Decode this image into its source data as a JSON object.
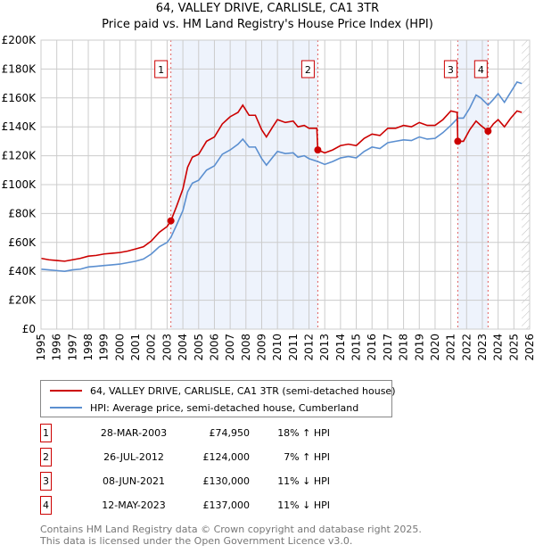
{
  "chart_data": {
    "type": "line",
    "title": "64, VALLEY DRIVE, CARLISLE, CA1 3TR",
    "subtitle": "Price paid vs. HM Land Registry's House Price Index (HPI)",
    "xlim": [
      1995,
      2026
    ],
    "ylim": [
      0,
      200000
    ],
    "x_ticks": [
      "1995",
      "1996",
      "1997",
      "1998",
      "1999",
      "2000",
      "2001",
      "2002",
      "2003",
      "2004",
      "2005",
      "2006",
      "2007",
      "2008",
      "2009",
      "2010",
      "2011",
      "2012",
      "2013",
      "2014",
      "2015",
      "2016",
      "2017",
      "2018",
      "2019",
      "2020",
      "2021",
      "2022",
      "2023",
      "2024",
      "2025",
      "2026"
    ],
    "y_ticks": [
      {
        "v": 0,
        "l": "£0"
      },
      {
        "v": 20000,
        "l": "£20K"
      },
      {
        "v": 40000,
        "l": "£40K"
      },
      {
        "v": 60000,
        "l": "£60K"
      },
      {
        "v": 80000,
        "l": "£80K"
      },
      {
        "v": 100000,
        "l": "£100K"
      },
      {
        "v": 120000,
        "l": "£120K"
      },
      {
        "v": 140000,
        "l": "£140K"
      },
      {
        "v": 160000,
        "l": "£160K"
      },
      {
        "v": 180000,
        "l": "£180K"
      },
      {
        "v": 200000,
        "l": "£200K"
      }
    ],
    "grid": true,
    "series": [
      {
        "name": "64, VALLEY DRIVE, CARLISLE, CA1 3TR (semi-detached house)",
        "color": "#cc0000",
        "points": [
          [
            1995,
            49000
          ],
          [
            1995.5,
            48000
          ],
          [
            1996,
            47500
          ],
          [
            1996.5,
            47000
          ],
          [
            1997,
            48000
          ],
          [
            1997.5,
            49000
          ],
          [
            1998,
            50500
          ],
          [
            1998.5,
            51000
          ],
          [
            1999,
            52000
          ],
          [
            1999.5,
            52500
          ],
          [
            2000,
            53000
          ],
          [
            2000.5,
            54000
          ],
          [
            2001,
            55500
          ],
          [
            2001.5,
            57000
          ],
          [
            2002,
            61000
          ],
          [
            2002.5,
            67000
          ],
          [
            2003,
            71000
          ],
          [
            2003.24,
            74950
          ],
          [
            2003.6,
            85000
          ],
          [
            2004,
            97000
          ],
          [
            2004.3,
            112000
          ],
          [
            2004.6,
            119000
          ],
          [
            2005,
            121000
          ],
          [
            2005.5,
            130000
          ],
          [
            2006,
            133000
          ],
          [
            2006.5,
            142000
          ],
          [
            2007,
            147000
          ],
          [
            2007.5,
            150000
          ],
          [
            2007.8,
            155000
          ],
          [
            2008.2,
            148000
          ],
          [
            2008.6,
            148000
          ],
          [
            2009,
            138000
          ],
          [
            2009.3,
            133000
          ],
          [
            2009.7,
            140000
          ],
          [
            2010,
            145000
          ],
          [
            2010.5,
            143000
          ],
          [
            2011,
            144000
          ],
          [
            2011.3,
            140000
          ],
          [
            2011.7,
            141000
          ],
          [
            2012,
            139000
          ],
          [
            2012.5,
            139000
          ],
          [
            2012.56,
            124000
          ],
          [
            2013,
            122000
          ],
          [
            2013.5,
            124000
          ],
          [
            2014,
            127000
          ],
          [
            2014.5,
            128000
          ],
          [
            2015,
            127000
          ],
          [
            2015.5,
            132000
          ],
          [
            2016,
            135000
          ],
          [
            2016.5,
            134000
          ],
          [
            2017,
            139000
          ],
          [
            2017.5,
            139000
          ],
          [
            2018,
            141000
          ],
          [
            2018.5,
            140000
          ],
          [
            2019,
            143000
          ],
          [
            2019.5,
            141000
          ],
          [
            2020,
            141000
          ],
          [
            2020.5,
            145000
          ],
          [
            2021,
            151000
          ],
          [
            2021.4,
            150000
          ],
          [
            2021.44,
            130000
          ],
          [
            2021.8,
            130000
          ],
          [
            2022.2,
            138000
          ],
          [
            2022.6,
            144000
          ],
          [
            2022.9,
            141000
          ],
          [
            2023.36,
            137000
          ],
          [
            2023.7,
            142000
          ],
          [
            2024,
            145000
          ],
          [
            2024.4,
            140000
          ],
          [
            2024.8,
            146000
          ],
          [
            2025.2,
            151000
          ],
          [
            2025.5,
            150000
          ]
        ]
      },
      {
        "name": "HPI: Average price, semi-detached house, Cumberland",
        "color": "#5b8fd0",
        "points": [
          [
            1995,
            41500
          ],
          [
            1995.5,
            41000
          ],
          [
            1996,
            40500
          ],
          [
            1996.5,
            40000
          ],
          [
            1997,
            41000
          ],
          [
            1997.5,
            41500
          ],
          [
            1998,
            43000
          ],
          [
            1998.5,
            43500
          ],
          [
            1999,
            44000
          ],
          [
            1999.5,
            44500
          ],
          [
            2000,
            45000
          ],
          [
            2000.5,
            46000
          ],
          [
            2001,
            47000
          ],
          [
            2001.5,
            48500
          ],
          [
            2002,
            52000
          ],
          [
            2002.5,
            57000
          ],
          [
            2003,
            60000
          ],
          [
            2003.24,
            63500
          ],
          [
            2003.6,
            72000
          ],
          [
            2004,
            82000
          ],
          [
            2004.3,
            95000
          ],
          [
            2004.6,
            101000
          ],
          [
            2005,
            103000
          ],
          [
            2005.5,
            110000
          ],
          [
            2006,
            113000
          ],
          [
            2006.5,
            121000
          ],
          [
            2007,
            124000
          ],
          [
            2007.5,
            128000
          ],
          [
            2007.8,
            131500
          ],
          [
            2008.2,
            126000
          ],
          [
            2008.6,
            126000
          ],
          [
            2009,
            118000
          ],
          [
            2009.3,
            113500
          ],
          [
            2009.7,
            119000
          ],
          [
            2010,
            123000
          ],
          [
            2010.5,
            121500
          ],
          [
            2011,
            122000
          ],
          [
            2011.3,
            119000
          ],
          [
            2011.7,
            120000
          ],
          [
            2012,
            118000
          ],
          [
            2012.56,
            116000
          ],
          [
            2013,
            114000
          ],
          [
            2013.5,
            116000
          ],
          [
            2014,
            118500
          ],
          [
            2014.5,
            119500
          ],
          [
            2015,
            118500
          ],
          [
            2015.5,
            123000
          ],
          [
            2016,
            126000
          ],
          [
            2016.5,
            125000
          ],
          [
            2017,
            129000
          ],
          [
            2017.5,
            130000
          ],
          [
            2018,
            131000
          ],
          [
            2018.5,
            130500
          ],
          [
            2019,
            133000
          ],
          [
            2019.5,
            131500
          ],
          [
            2020,
            132000
          ],
          [
            2020.5,
            136000
          ],
          [
            2021,
            141000
          ],
          [
            2021.44,
            146000
          ],
          [
            2021.8,
            146000
          ],
          [
            2022.2,
            153000
          ],
          [
            2022.6,
            162000
          ],
          [
            2022.9,
            160000
          ],
          [
            2023.36,
            155000
          ],
          [
            2023.7,
            159000
          ],
          [
            2024,
            163000
          ],
          [
            2024.4,
            157000
          ],
          [
            2024.8,
            164000
          ],
          [
            2025.2,
            171000
          ],
          [
            2025.5,
            170000
          ]
        ]
      }
    ],
    "sales": [
      {
        "n": "1",
        "x": 2003.24,
        "y": 74950,
        "date": "28-MAR-2003",
        "price": "£74,950",
        "hpi": "18% ↑ HPI"
      },
      {
        "n": "2",
        "x": 2012.56,
        "y": 124000,
        "date": "26-JUL-2012",
        "price": "£124,000",
        "hpi": "7% ↑ HPI"
      },
      {
        "n": "3",
        "x": 2021.44,
        "y": 130000,
        "date": "08-JUN-2021",
        "price": "£130,000",
        "hpi": "11% ↓ HPI"
      },
      {
        "n": "4",
        "x": 2023.36,
        "y": 137000,
        "date": "12-MAY-2023",
        "price": "£137,000",
        "hpi": "11% ↓ HPI"
      }
    ],
    "forecast_start": 2025.5,
    "legend": "below"
  },
  "footer": {
    "line1": "Contains HM Land Registry data © Crown copyright and database right 2025.",
    "line2": "This data is licensed under the Open Government Licence v3.0."
  }
}
